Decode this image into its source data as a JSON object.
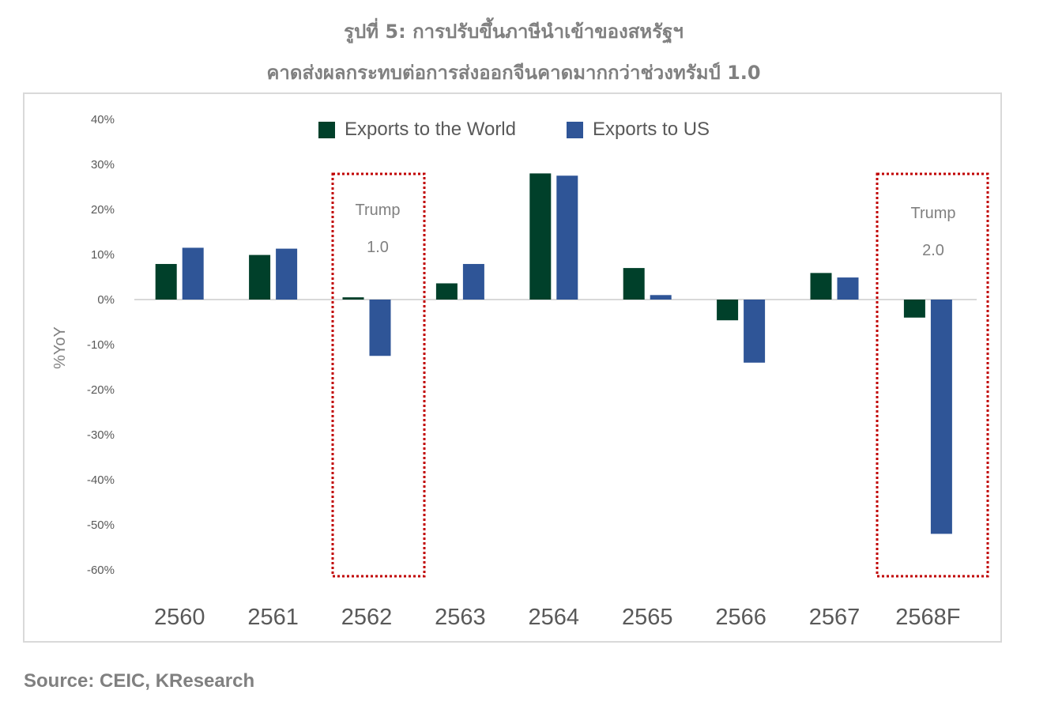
{
  "title": "รูปที่ 5: การปรับขึ้นภาษีนำเข้าของสหรัฐฯ",
  "subtitle": "คาดส่งผลกระทบต่อการส่งออกจีนคาดมากกว่าช่วงทรัมป์ 1.0",
  "source": "Source: CEIC, KResearch",
  "chart_data": {
    "type": "bar",
    "categories": [
      "2560",
      "2561",
      "2562",
      "2563",
      "2564",
      "2565",
      "2566",
      "2567",
      "2568F"
    ],
    "series": [
      {
        "name": "Exports to the World",
        "color": "#00402a",
        "values": [
          7.9,
          9.9,
          0.5,
          3.6,
          28.0,
          7.0,
          -4.6,
          5.9,
          -4.0
        ]
      },
      {
        "name": "Exports to US",
        "color": "#2f5597",
        "values": [
          11.5,
          11.3,
          -12.5,
          7.9,
          27.5,
          1.0,
          -14.0,
          4.9,
          -52.0
        ]
      }
    ],
    "ylabel": "%YoY",
    "ylim": [
      -60,
      40
    ],
    "yticks": [
      40,
      30,
      20,
      10,
      0,
      -10,
      -20,
      -30,
      -40,
      -50,
      -60
    ],
    "ytick_labels": [
      "40%",
      "30%",
      "20%",
      "10%",
      "0%",
      "-10%",
      "-20%",
      "-30%",
      "-40%",
      "-50%",
      "-60%"
    ],
    "legend_position": "top-center",
    "grid": false,
    "annotations": [
      {
        "label_line1": "Trump",
        "label_line2": "1.0",
        "category": "2562",
        "style": "dotted-red-box"
      },
      {
        "label_line1": "Trump",
        "label_line2": "2.0",
        "category": "2568F",
        "style": "dotted-red-box"
      }
    ],
    "highlight_color": "#c00000"
  }
}
